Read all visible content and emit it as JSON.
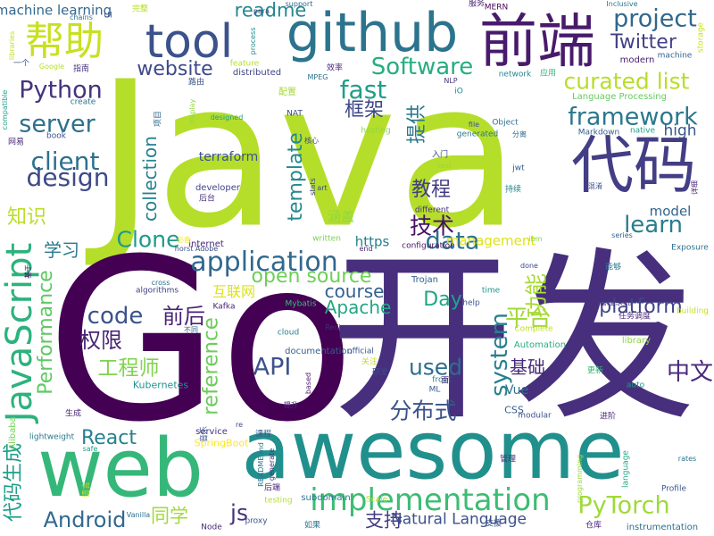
{
  "word_cloud": {
    "words": [
      {
        "text": "Java",
        "color": "#b5de2b"
      },
      {
        "text": "Go",
        "color": "#440154"
      },
      {
        "text": "开发",
        "color": "#472f7d"
      },
      {
        "text": "awesome",
        "color": "#21908d"
      },
      {
        "text": "web",
        "color": "#35b779"
      },
      {
        "text": "github",
        "color": "#2c738e"
      },
      {
        "text": "tool",
        "color": "#3b528b"
      },
      {
        "text": "前端",
        "color": "#481a6c"
      },
      {
        "text": "代码",
        "color": "#433e85"
      },
      {
        "text": "帮助",
        "color": "#c8e020"
      },
      {
        "text": "JavaScript",
        "color": "#2db27d"
      },
      {
        "text": "implementation",
        "color": "#3dbc74"
      },
      {
        "text": "application",
        "color": "#31688e"
      },
      {
        "text": "project",
        "color": "#31688e"
      },
      {
        "text": "Software",
        "color": "#27ad81"
      },
      {
        "text": "fast",
        "color": "#1f9e89"
      },
      {
        "text": "curated list",
        "color": "#b8de29"
      },
      {
        "text": "framework",
        "color": "#2a788e"
      },
      {
        "text": "Python",
        "color": "#46337e"
      },
      {
        "text": "server",
        "color": "#2d708e"
      },
      {
        "text": "client",
        "color": "#2d708e"
      },
      {
        "text": "design",
        "color": "#3e4989"
      },
      {
        "text": "Performance",
        "color": "#5ec962"
      },
      {
        "text": "collection",
        "color": "#26828e"
      },
      {
        "text": "template",
        "color": "#23898e"
      },
      {
        "text": "data",
        "color": "#2c728e"
      },
      {
        "text": "learn",
        "color": "#287d8e"
      },
      {
        "text": "Clone",
        "color": "#1f9a8a"
      },
      {
        "text": "code",
        "color": "#3b528b"
      },
      {
        "text": "open source",
        "color": "#6ece58"
      },
      {
        "text": "website",
        "color": "#3e4a89"
      },
      {
        "text": "readme",
        "color": "#24878e"
      },
      {
        "text": "Twitter",
        "color": "#424086"
      },
      {
        "text": "PyTorch",
        "color": "#9fda3a"
      },
      {
        "text": "Android",
        "color": "#31688e"
      },
      {
        "text": "React",
        "color": "#26818e"
      },
      {
        "text": "API",
        "color": "#3b528b"
      },
      {
        "text": "js",
        "color": "#46337e"
      },
      {
        "text": "system",
        "color": "#27808e"
      },
      {
        "text": "reference",
        "color": "#6ccd5a"
      },
      {
        "text": "course",
        "color": "#34618d"
      },
      {
        "text": "platform",
        "color": "#404688"
      },
      {
        "text": "used",
        "color": "#2e6e8e"
      },
      {
        "text": "Apache",
        "color": "#21a685"
      },
      {
        "text": "Day",
        "color": "#20a486"
      },
      {
        "text": "技术",
        "color": "#471164"
      },
      {
        "text": "框架",
        "color": "#3f4788"
      },
      {
        "text": "教程",
        "color": "#433d84"
      },
      {
        "text": "提供",
        "color": "#2a768e"
      },
      {
        "text": "平台",
        "color": "#a2da37"
      },
      {
        "text": "功能",
        "color": "#a8db34"
      },
      {
        "text": "前后",
        "color": "#482374"
      },
      {
        "text": "权限",
        "color": "#482575"
      },
      {
        "text": "工程师",
        "color": "#7fd34e"
      },
      {
        "text": "分布式",
        "color": "#3a538b"
      },
      {
        "text": "中文",
        "color": "#482979"
      },
      {
        "text": "基础",
        "color": "#482979"
      },
      {
        "text": "学习",
        "color": "#297a8e"
      },
      {
        "text": "知识",
        "color": "#bade28"
      },
      {
        "text": "同学",
        "color": "#a2da37"
      },
      {
        "text": "支持",
        "color": "#443a83"
      },
      {
        "text": "代码生成",
        "color": "#1f9e89"
      },
      {
        "text": "machine learning",
        "color": "#31688e"
      },
      {
        "text": "Natural Language",
        "color": "#3b528b"
      },
      {
        "text": "model",
        "color": "#32648e"
      },
      {
        "text": "management",
        "color": "#dde318"
      },
      {
        "text": "terraform",
        "color": "#3b528b"
      },
      {
        "text": "https",
        "color": "#277f8e"
      },
      {
        "text": "high",
        "color": "#39568c"
      },
      {
        "text": "涵盖",
        "color": "#90d743"
      },
      {
        "text": "互联网",
        "color": "#dde318"
      },
      {
        "text": "Vue",
        "color": "#2c718e"
      },
      {
        "text": "CSS",
        "color": "#365c8d"
      },
      {
        "text": "Alibaba",
        "color": "#73d056"
      },
      {
        "text": "Kubernetes",
        "color": "#1f948c"
      },
      {
        "text": "SpringBoot",
        "color": "#fde725"
      },
      {
        "text": "Redis",
        "color": "#472c7a"
      },
      {
        "text": "Kafka",
        "color": "#482475"
      },
      {
        "text": "Mybatis",
        "color": "#3dbc74"
      },
      {
        "text": "Trojan",
        "color": "#34608d"
      },
      {
        "text": "MERN",
        "color": "#450559"
      },
      {
        "text": "Inclusive",
        "color": "#2a778e"
      },
      {
        "text": "documentation",
        "color": "#355f8d"
      },
      {
        "text": "algorithms",
        "color": "#424086"
      },
      {
        "text": "Automation",
        "color": "#29af7f"
      },
      {
        "text": "Exposure",
        "color": "#2d708e"
      },
      {
        "text": "instrumentation",
        "color": "#2e6f8e"
      },
      {
        "text": "subdomain",
        "color": "#2a778e"
      },
      {
        "text": "Markdown",
        "color": "#365c8d"
      },
      {
        "text": "hosting",
        "color": "#8ed645"
      },
      {
        "text": "generated",
        "color": "#2a768e"
      },
      {
        "text": "distributed",
        "color": "#414487"
      },
      {
        "text": "modern",
        "color": "#482173"
      },
      {
        "text": "machine",
        "color": "#33638d"
      },
      {
        "text": "network",
        "color": "#25848e"
      },
      {
        "text": "library",
        "color": "#8bd646"
      },
      {
        "text": "building",
        "color": "#c2df23"
      },
      {
        "text": "storage",
        "color": "#cae11f"
      },
      {
        "text": "Language Processing",
        "color": "#65cb5e"
      },
      {
        "text": "Object",
        "color": "#2e6f8e"
      },
      {
        "text": "native",
        "color": "#1fa287"
      },
      {
        "text": "official",
        "color": "#3a548c"
      },
      {
        "text": "configuration",
        "color": "#471365"
      },
      {
        "text": "developer",
        "color": "#414487"
      },
      {
        "text": "Complete",
        "color": "#c0df25"
      },
      {
        "text": "internet",
        "color": "#482677"
      },
      {
        "text": "different",
        "color": "#46307e"
      },
      {
        "text": "written",
        "color": "#7ad151"
      },
      {
        "text": "Google",
        "color": "#b5de2b"
      },
      {
        "text": "support",
        "color": "#31688e"
      },
      {
        "text": "process",
        "color": "#228c8d"
      },
      {
        "text": "feature",
        "color": "#b5de2b"
      },
      {
        "text": "create",
        "color": "#2c728e"
      },
      {
        "text": "book",
        "color": "#3b528b"
      },
      {
        "text": "compatible",
        "color": "#1fa088"
      },
      {
        "text": "libraries",
        "color": "#c5e021"
      },
      {
        "text": "designed",
        "color": "#1fa088"
      },
      {
        "text": "series",
        "color": "#34608d"
      },
      {
        "text": "help",
        "color": "#39568c"
      },
      {
        "text": "time",
        "color": "#1f948c"
      },
      {
        "text": "done",
        "color": "#3e4989"
      },
      {
        "text": "cross",
        "color": "#2f6c8e"
      },
      {
        "text": "safe",
        "color": "#1f9e89"
      },
      {
        "text": "lightweight",
        "color": "#2a788e"
      },
      {
        "text": "service",
        "color": "#46327e"
      },
      {
        "text": "modular",
        "color": "#3b528b"
      },
      {
        "text": "front",
        "color": "#26828e"
      },
      {
        "text": "auto",
        "color": "#1f998a"
      },
      {
        "text": "rates",
        "color": "#2c728e"
      },
      {
        "text": "Profile",
        "color": "#39568c"
      },
      {
        "text": "Node",
        "color": "#482677"
      },
      {
        "text": "proxy",
        "color": "#3b528b"
      },
      {
        "text": "Scale",
        "color": "#b5de2b"
      },
      {
        "text": "NAT",
        "color": "#3e4989"
      },
      {
        "text": "NLP",
        "color": "#46337e"
      },
      {
        "text": "MPEG",
        "color": "#2c728e"
      },
      {
        "text": "para",
        "color": "#3e4a89"
      },
      {
        "text": "chains",
        "color": "#2c738e"
      },
      {
        "text": "UI",
        "color": "#3e4989"
      },
      {
        "text": "ML",
        "color": "#38598c"
      },
      {
        "text": "test",
        "color": "#95d840"
      },
      {
        "text": "jwt",
        "color": "#365d8d"
      },
      {
        "text": "file",
        "color": "#3a548c"
      },
      {
        "text": "iO",
        "color": "#24868e"
      },
      {
        "text": "ibm",
        "color": "#8bd646"
      },
      {
        "text": "end",
        "color": "#482878"
      },
      {
        "text": "art",
        "color": "#3e4989"
      },
      {
        "text": "cloud",
        "color": "#277f8e"
      },
      {
        "text": "stats",
        "color": "#3e4989"
      },
      {
        "text": "testing",
        "color": "#b5de2b"
      },
      {
        "text": "based",
        "color": "#481b6d"
      },
      {
        "text": "re",
        "color": "#3e4989"
      },
      {
        "text": "generate",
        "color": "#472c7a"
      },
      {
        "text": "language",
        "color": "#22a884"
      },
      {
        "text": "programming",
        "color": "#9bd93c"
      },
      {
        "text": "display",
        "color": "#95d840"
      },
      {
        "text": "horst Adobe",
        "color": "#3b528b"
      },
      {
        "text": "Vanilla",
        "color": "#2d708e"
      },
      {
        "text": "README.md",
        "color": "#2c728e"
      },
      {
        "text": "完整",
        "color": "#b5de2b"
      },
      {
        "text": "服务",
        "color": "#482677"
      },
      {
        "text": "一个",
        "color": "#365d8d"
      },
      {
        "text": "指南",
        "color": "#46337e"
      },
      {
        "text": "效率",
        "color": "#482878"
      },
      {
        "text": "应用",
        "color": "#35b779"
      },
      {
        "text": "路由",
        "color": "#3b528b"
      },
      {
        "text": "项目",
        "color": "#31688e"
      },
      {
        "text": "配置",
        "color": "#a2da37"
      },
      {
        "text": "网易",
        "color": "#482878"
      },
      {
        "text": "核心",
        "color": "#3f4788"
      },
      {
        "text": "分离",
        "color": "#2f6b8e"
      },
      {
        "text": "入门",
        "color": "#3e4989"
      },
      {
        "text": "持续",
        "color": "#25848e"
      },
      {
        "text": "后台",
        "color": "#472f7d"
      },
      {
        "text": "必备",
        "color": "#fde725"
      },
      {
        "text": "混淆",
        "color": "#3b528b"
      },
      {
        "text": "详细",
        "color": "#482475"
      },
      {
        "text": "基于",
        "color": "#471063"
      },
      {
        "text": "能够",
        "color": "#2c728e"
      },
      {
        "text": "管理系统",
        "color": "#46327e"
      },
      {
        "text": "任务调度",
        "color": "#482878"
      },
      {
        "text": "不同",
        "color": "#31688e"
      },
      {
        "text": "关注",
        "color": "#c2df23"
      },
      {
        "text": "提升",
        "color": "#472f7d"
      },
      {
        "text": "研发",
        "color": "#3e4a89"
      },
      {
        "text": "面试",
        "color": "#46337e"
      },
      {
        "text": "更新",
        "color": "#35b779"
      },
      {
        "text": "进阶",
        "color": "#482878"
      },
      {
        "text": "生成",
        "color": "#482878"
      },
      {
        "text": "音乐",
        "color": "#3b528b"
      },
      {
        "text": "课程",
        "color": "#365d8d"
      },
      {
        "text": "后端",
        "color": "#482475"
      },
      {
        "text": "如果",
        "color": "#2c728e"
      },
      {
        "text": "管理",
        "color": "#46327e"
      },
      {
        "text": "仓库",
        "color": "#482677"
      },
      {
        "text": "语言",
        "color": "#c8e020"
      },
      {
        "text": "支援",
        "color": "#3b528b"
      }
    ]
  }
}
